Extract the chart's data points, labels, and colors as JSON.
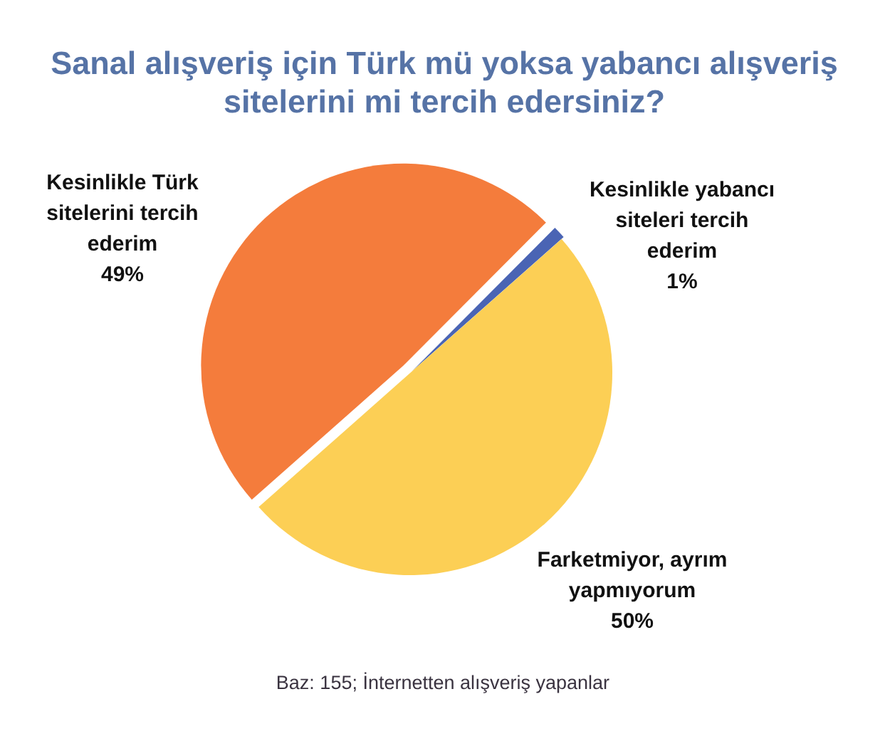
{
  "chart_data": {
    "type": "pie",
    "title": "Sanal alışveriş için Türk mü yoksa yabancı alışveriş sitelerini mi tercih edersiniz?",
    "categories": [
      "Kesinlikle Türk sitelerini tercih ederim",
      "Kesinlikle yabancı siteleri tercih ederim",
      "Farketmiyor, ayrım yapmıyorum"
    ],
    "values": [
      49,
      1,
      50
    ],
    "colors": [
      "#f47c3c",
      "#4a64b4",
      "#fccf55"
    ],
    "value_labels": [
      "49%",
      "1%",
      "50%"
    ],
    "annotations": [
      "Baz: 155; İnternetten alışveriş yapanlar"
    ]
  }
}
